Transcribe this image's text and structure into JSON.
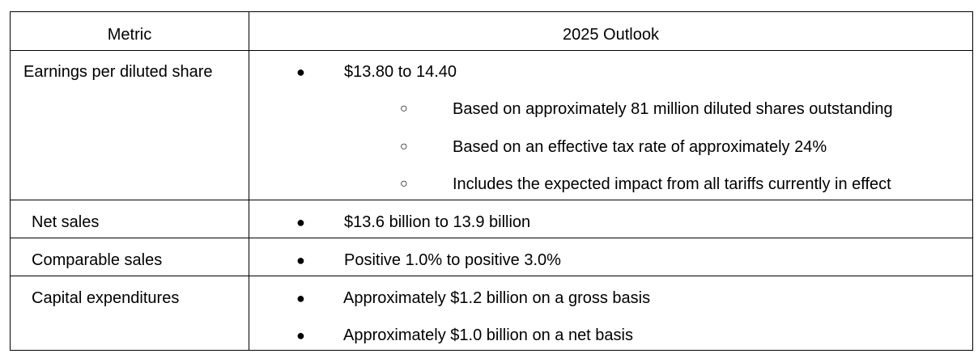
{
  "table": {
    "headers": [
      "Metric",
      "2025 Outlook"
    ],
    "rows": [
      {
        "metric": "Earnings per diluted share",
        "items": [
          "$13.80 to 14.40"
        ],
        "subitems": [
          "Based on approximately 81 million diluted shares outstanding",
          "Based on an effective tax rate of approximately 24%",
          "Includes the expected impact from all tariffs currently in effect"
        ]
      },
      {
        "metric": "Net sales",
        "items": [
          "$13.6 billion to 13.9 billion"
        ]
      },
      {
        "metric": "Comparable sales",
        "items": [
          "Positive 1.0% to positive 3.0%"
        ]
      },
      {
        "metric": "Capital expenditures",
        "items": [
          "Approximately $1.2 billion on a gross basis",
          "Approximately $1.0 billion on a net basis"
        ]
      }
    ]
  },
  "glyphs": {
    "bullet": "●",
    "subbullet": "○"
  }
}
